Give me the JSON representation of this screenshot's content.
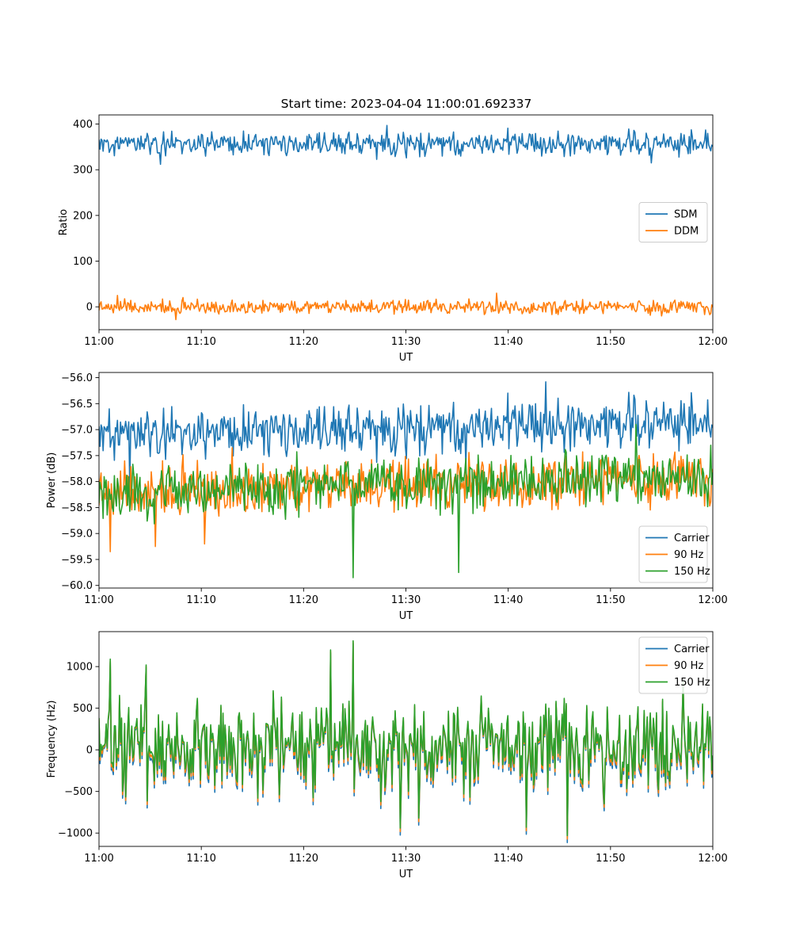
{
  "figure": {
    "title": "Start time: 2023-04-04 11:00:01.692337"
  },
  "colors": {
    "blue": "#1f77b4",
    "orange": "#ff7f0e",
    "green": "#2ca02c"
  },
  "chart_data": [
    {
      "type": "line",
      "id": "ratio",
      "title": "Start time: 2023-04-04 11:00:01.692337",
      "xlabel": "UT",
      "ylabel": "Ratio",
      "x_ticks": [
        "11:00",
        "11:10",
        "11:20",
        "11:30",
        "11:40",
        "11:50",
        "12:00"
      ],
      "xlim_minutes": [
        0,
        60
      ],
      "ylim": [
        -50,
        420
      ],
      "y_ticks": [
        0,
        100,
        200,
        300,
        400
      ],
      "y_tick_labels": [
        "0",
        "100",
        "200",
        "300",
        "400"
      ],
      "legend": "center-right",
      "grid": false,
      "n_points": 600,
      "series": [
        {
          "name": "SDM",
          "color": "#1f77b4",
          "mean": 357,
          "amplitude": 16,
          "min": 312,
          "max": 397,
          "spikes": [
            [
              6,
              312
            ],
            [
              28.1,
              397
            ],
            [
              54,
              315
            ],
            [
              59.3,
              387
            ],
            [
              11,
              383
            ]
          ]
        },
        {
          "name": "DDM",
          "color": "#ff7f0e",
          "mean": 0,
          "amplitude": 9,
          "min": -28,
          "max": 30,
          "spikes": [
            [
              7.5,
              -28
            ],
            [
              38.9,
              30
            ],
            [
              1.8,
              25
            ],
            [
              55,
              -20
            ]
          ]
        }
      ]
    },
    {
      "type": "line",
      "id": "power",
      "xlabel": "UT",
      "ylabel": "Power (dB)",
      "x_ticks": [
        "11:00",
        "11:10",
        "11:20",
        "11:30",
        "11:40",
        "11:50",
        "12:00"
      ],
      "xlim_minutes": [
        0,
        60
      ],
      "ylim": [
        -60.05,
        -55.9
      ],
      "y_ticks": [
        -60.0,
        -59.5,
        -59.0,
        -58.5,
        -58.0,
        -57.5,
        -57.0,
        -56.5,
        -56.0
      ],
      "y_tick_labels": [
        "−60.0",
        "−59.5",
        "−59.0",
        "−58.5",
        "−58.0",
        "−57.5",
        "−57.0",
        "−56.5",
        "−56.0"
      ],
      "legend": "lower-right",
      "grid": false,
      "n_points": 600,
      "series": [
        {
          "name": "Carrier",
          "color": "#1f77b4",
          "mean_start": -57.1,
          "mean_end": -56.85,
          "amplitude": 0.3,
          "spikes": [
            [
              43.7,
              -56.08
            ],
            [
              1,
              -56.6
            ],
            [
              35.9,
              -57.7
            ],
            [
              3,
              -58.1
            ]
          ]
        },
        {
          "name": "90 Hz",
          "color": "#ff7f0e",
          "mean_start": -58.2,
          "mean_end": -57.9,
          "amplitude": 0.3,
          "spikes": [
            [
              1.1,
              -59.35
            ],
            [
              5.5,
              -59.25
            ],
            [
              10.3,
              -59.2
            ],
            [
              13,
              -57.35
            ]
          ]
        },
        {
          "name": "150 Hz",
          "color": "#2ca02c",
          "mean_start": -58.2,
          "mean_end": -57.9,
          "amplitude": 0.32,
          "spikes": [
            [
              24.8,
              -59.85
            ],
            [
              35.2,
              -59.75
            ],
            [
              52.5,
              -56.9
            ],
            [
              59.8,
              -57.3
            ]
          ]
        }
      ]
    },
    {
      "type": "line",
      "id": "frequency",
      "xlabel": "UT",
      "ylabel": "Frequency (Hz)",
      "x_ticks": [
        "11:00",
        "11:10",
        "11:20",
        "11:30",
        "11:40",
        "11:50",
        "12:00"
      ],
      "xlim_minutes": [
        0,
        60
      ],
      "ylim": [
        -1160,
        1420
      ],
      "y_ticks": [
        -1000,
        -500,
        0,
        500,
        1000
      ],
      "y_tick_labels": [
        "−1000",
        "−500",
        "0",
        "500",
        "1000"
      ],
      "legend": "upper-right",
      "grid": false,
      "n_points": 600,
      "series": [
        {
          "name": "Carrier",
          "color": "#1f77b4",
          "offset": -60
        },
        {
          "name": "90 Hz",
          "color": "#ff7f0e",
          "offset": -30
        },
        {
          "name": "150 Hz",
          "color": "#2ca02c",
          "offset": 0
        }
      ],
      "base": {
        "mean": 50,
        "amplitude": 330,
        "spikes": [
          [
            1.1,
            1090
          ],
          [
            24.8,
            1310
          ],
          [
            29.4,
            -940
          ],
          [
            45.8,
            -1030
          ],
          [
            17,
            710
          ],
          [
            22.6,
            1200
          ],
          [
            4.6,
            1020
          ],
          [
            31.3,
            -820
          ],
          [
            41.8,
            -930
          ]
        ]
      }
    }
  ]
}
